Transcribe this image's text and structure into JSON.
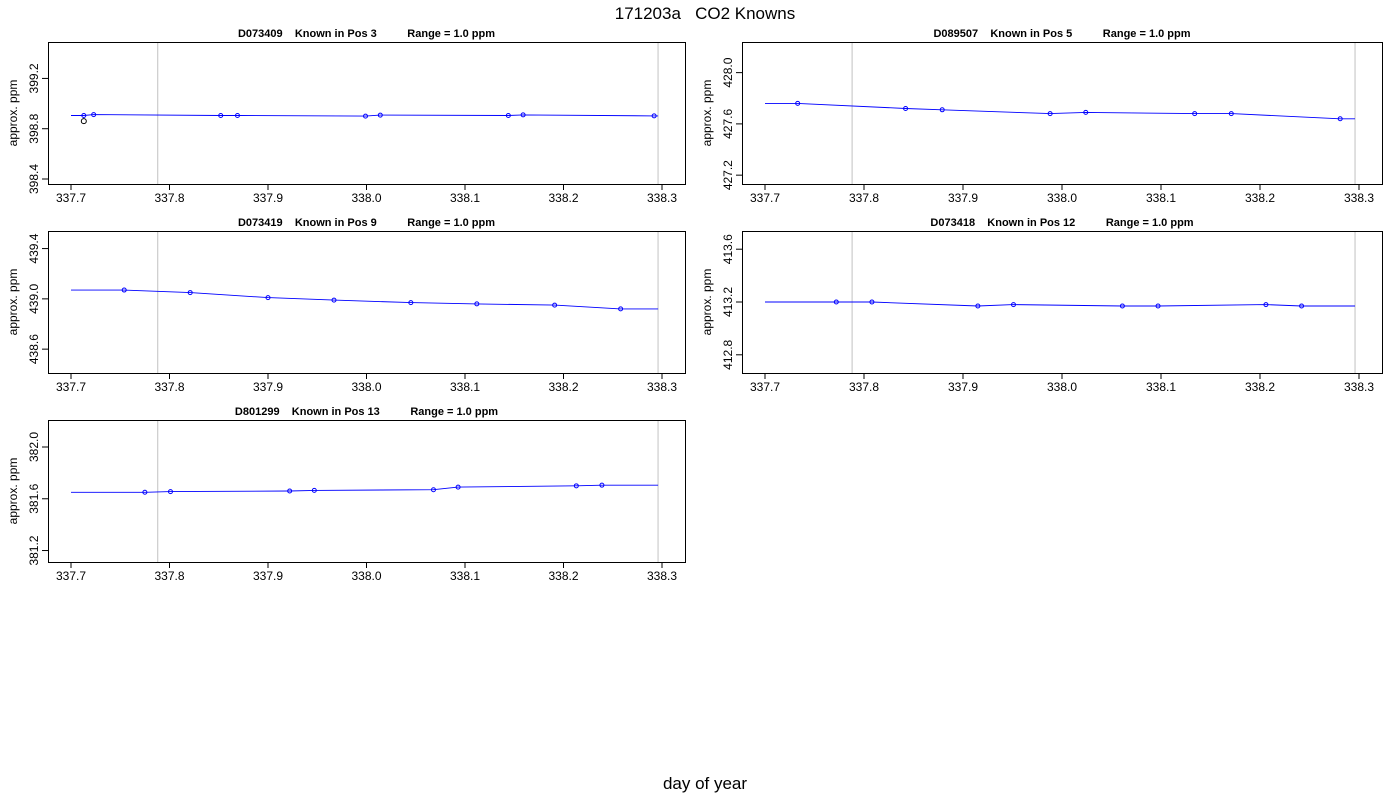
{
  "page": {
    "title": "171203a   CO2 Knowns",
    "xlabel": "day of year"
  },
  "colors": {
    "series_line": "#0000ff",
    "series_points": "#0000ff",
    "first_point": "#000000",
    "marker_lines": "#cccccc",
    "axes": "#000000"
  },
  "chart_data": [
    {
      "type": "line",
      "title": "D073409    Known in Pos 3          Range = 1.0 ppm",
      "ylabel": "approx. ppm",
      "xlim": [
        337.7,
        338.3
      ],
      "ylim": [
        398.4,
        399.45
      ],
      "xticks": [
        "337.7",
        "337.8",
        "337.9",
        "338.0",
        "338.1",
        "338.2",
        "338.3"
      ],
      "yticks": [
        "398.4",
        "398.8",
        "399.2"
      ],
      "markers": [
        337.788,
        338.296
      ],
      "points": [
        [
          337.713,
          398.86
        ]
      ],
      "x": [
        337.713,
        337.723,
        337.852,
        337.869,
        337.999,
        338.014,
        338.144,
        338.159,
        338.292
      ],
      "y": [
        398.905,
        398.912,
        398.905,
        398.905,
        398.9,
        398.908,
        398.905,
        398.91,
        398.902
      ]
    },
    {
      "type": "line",
      "title": "D089507    Known in Pos 5          Range = 1.0 ppm",
      "ylabel": "approx. ppm",
      "xlim": [
        337.7,
        338.3
      ],
      "ylim": [
        427.17,
        428.2
      ],
      "xticks": [
        "337.7",
        "337.8",
        "337.9",
        "338.0",
        "338.1",
        "338.2",
        "338.3"
      ],
      "yticks": [
        "427.2",
        "427.6",
        "428.0"
      ],
      "markers": [
        337.788,
        338.296
      ],
      "x": [
        337.733,
        337.842,
        337.879,
        337.988,
        338.024,
        338.134,
        338.171,
        338.281
      ],
      "y": [
        427.76,
        427.72,
        427.71,
        427.68,
        427.69,
        427.68,
        427.68,
        427.64
      ]
    },
    {
      "type": "line",
      "title": "D073419    Known in Pos 9          Range = 1.0 ppm",
      "ylabel": "approx. ppm",
      "xlim": [
        337.7,
        338.3
      ],
      "ylim": [
        438.45,
        439.5
      ],
      "xticks": [
        "337.7",
        "337.8",
        "337.9",
        "338.0",
        "338.1",
        "338.2",
        "338.3"
      ],
      "yticks": [
        "438.6",
        "439.0",
        "439.4"
      ],
      "markers": [
        337.788,
        338.296
      ],
      "x": [
        337.754,
        337.821,
        337.9,
        337.967,
        338.045,
        338.112,
        338.191,
        338.258
      ],
      "y": [
        439.07,
        439.05,
        439.01,
        438.99,
        438.97,
        438.96,
        438.95,
        438.92
      ]
    },
    {
      "type": "line",
      "title": "D073418    Known in Pos 12          Range = 1.0 ppm",
      "ylabel": "approx. ppm",
      "xlim": [
        337.7,
        338.3
      ],
      "ylim": [
        412.7,
        413.7
      ],
      "xticks": [
        "337.7",
        "337.8",
        "337.9",
        "338.0",
        "338.1",
        "338.2",
        "338.3"
      ],
      "yticks": [
        "412.8",
        "413.2",
        "413.6"
      ],
      "markers": [
        337.788,
        338.296
      ],
      "x": [
        337.772,
        337.808,
        337.915,
        337.951,
        338.061,
        338.097,
        338.206,
        338.242
      ],
      "y": [
        413.2,
        413.2,
        413.17,
        413.18,
        413.17,
        413.17,
        413.18,
        413.17
      ]
    },
    {
      "type": "line",
      "title": "D801299    Known in Pos 13          Range = 1.0 ppm",
      "ylabel": "approx. ppm",
      "xlim": [
        337.7,
        338.3
      ],
      "ylim": [
        381.15,
        382.17
      ],
      "xticks": [
        "337.7",
        "337.8",
        "337.9",
        "338.0",
        "338.1",
        "338.2",
        "338.3"
      ],
      "yticks": [
        "381.2",
        "381.6",
        "382.0"
      ],
      "markers": [
        337.788,
        338.296
      ],
      "x": [
        337.775,
        337.801,
        337.922,
        337.947,
        338.068,
        338.093,
        338.213,
        338.239
      ],
      "y": [
        381.65,
        381.655,
        381.66,
        381.665,
        381.67,
        381.69,
        381.7,
        381.705
      ]
    }
  ]
}
